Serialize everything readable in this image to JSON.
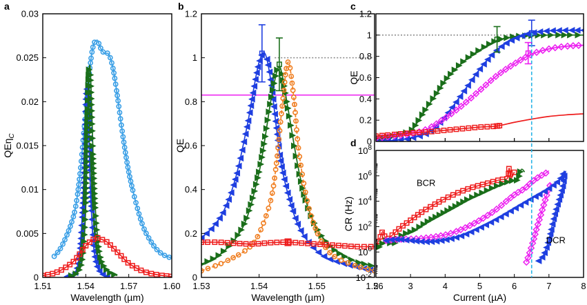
{
  "colors": {
    "blue": "#1f3fe0",
    "green": "#1a6e1a",
    "red": "#ee1c1c",
    "lightblue": "#3a9fe6",
    "orange": "#f07f22",
    "magenta": "#ec1ff0",
    "cyan": "#27b3e6",
    "grey": "#8c8c8c"
  },
  "chart_data": [
    {
      "id": "a",
      "panel_label": "a",
      "type": "line",
      "xlabel": "Wavelength (µm)",
      "ylabel": "QEη",
      "ylabel_sub": "C",
      "xlim": [
        1.51,
        1.6
      ],
      "ylim": [
        0,
        0.03
      ],
      "xticks": [
        "1.51",
        "1.54",
        "1.57",
        "1.60"
      ],
      "xtick_values": [
        1.51,
        1.54,
        1.57,
        1.6
      ],
      "yticks": [
        "0",
        "0.005",
        "0.01",
        "0.015",
        "0.02",
        "0.025",
        "0.03"
      ],
      "ytick_values": [
        0,
        0.005,
        0.01,
        0.015,
        0.02,
        0.025,
        0.03
      ],
      "series": [
        {
          "name": "lightblue (circles)",
          "color_key": "lightblue",
          "marker": "circle",
          "x": [
            1.518,
            1.522,
            1.526,
            1.53,
            1.533,
            1.536,
            1.539,
            1.542,
            1.545,
            1.548,
            1.55,
            1.553,
            1.556,
            1.559,
            1.562,
            1.566,
            1.57,
            1.575,
            1.58,
            1.585,
            1.59,
            1.595,
            1.6
          ],
          "y": [
            0.0024,
            0.0032,
            0.0045,
            0.0062,
            0.0081,
            0.0118,
            0.0172,
            0.0226,
            0.0262,
            0.027,
            0.0262,
            0.0255,
            0.0254,
            0.0238,
            0.0207,
            0.016,
            0.012,
            0.0085,
            0.0058,
            0.0042,
            0.0031,
            0.0025,
            0.0022
          ]
        },
        {
          "name": "blue (left triangles)",
          "color_key": "blue",
          "marker": "tri-left",
          "x": [
            1.527,
            1.532,
            1.535,
            1.537,
            1.539,
            1.54,
            1.541,
            1.542,
            1.543,
            1.545,
            1.547,
            1.55,
            1.555
          ],
          "y": [
            0.0001,
            0.0004,
            0.0019,
            0.0055,
            0.013,
            0.02,
            0.0213,
            0.018,
            0.0112,
            0.0045,
            0.0018,
            0.0006,
            0.0001
          ]
        },
        {
          "name": "green (right triangles)",
          "color_key": "green",
          "marker": "tri-right",
          "x": [
            1.53,
            1.535,
            1.538,
            1.54,
            1.541,
            1.542,
            1.543,
            1.544,
            1.545,
            1.547,
            1.55,
            1.555,
            1.562
          ],
          "y": [
            0.0002,
            0.0007,
            0.0025,
            0.008,
            0.016,
            0.0225,
            0.024,
            0.02,
            0.0145,
            0.007,
            0.0025,
            0.0008,
            0.0002
          ]
        },
        {
          "name": "red (squares)",
          "color_key": "red",
          "marker": "square",
          "x": [
            1.51,
            1.52,
            1.53,
            1.535,
            1.54,
            1.545,
            1.548,
            1.55,
            1.555,
            1.56,
            1.565,
            1.57,
            1.58,
            1.59,
            1.6
          ],
          "y": [
            0.0002,
            0.0006,
            0.0016,
            0.0025,
            0.0036,
            0.0043,
            0.0045,
            0.0044,
            0.004,
            0.0032,
            0.0024,
            0.0016,
            0.0007,
            0.0003,
            0.0001
          ]
        }
      ]
    },
    {
      "id": "b",
      "panel_label": "b",
      "type": "line",
      "xlabel": "Wavelength (µm)",
      "ylabel": "QE",
      "xlim": [
        1.53,
        1.56
      ],
      "ylim": [
        0,
        1.2
      ],
      "xticks": [
        "1.53",
        "1.54",
        "1.55",
        "1.56"
      ],
      "xtick_values": [
        1.53,
        1.54,
        1.55,
        1.56
      ],
      "yticks": [
        "0",
        "0.2",
        "0.4",
        "0.6",
        "0.8",
        "1",
        "1.2"
      ],
      "ytick_values": [
        0,
        0.2,
        0.4,
        0.6,
        0.8,
        1.0,
        1.2
      ],
      "reference_lines": [
        {
          "name": "unity (dotted)",
          "y": 1.0,
          "color_key": "grey",
          "style": "dotted",
          "x_from": 1.5427
        },
        {
          "name": "magenta level",
          "y": 0.83,
          "color_key": "magenta",
          "style": "solid"
        }
      ],
      "series": [
        {
          "name": "blue (left triangles)",
          "color_key": "blue",
          "marker": "tri-left",
          "x": [
            1.53,
            1.532,
            1.534,
            1.536,
            1.538,
            1.539,
            1.54,
            1.541,
            1.542,
            1.543,
            1.544,
            1.546,
            1.548,
            1.551,
            1.555,
            1.56
          ],
          "y": [
            0.18,
            0.23,
            0.31,
            0.46,
            0.7,
            0.85,
            0.98,
            1.02,
            0.9,
            0.68,
            0.49,
            0.29,
            0.18,
            0.1,
            0.06,
            0.03
          ],
          "error_bar": {
            "x": 1.5405,
            "y": 1.02,
            "err": 0.13
          }
        },
        {
          "name": "green (right triangles)",
          "color_key": "green",
          "marker": "tri-right",
          "x": [
            1.53,
            1.533,
            1.536,
            1.538,
            1.54,
            1.541,
            1.542,
            1.543,
            1.5435,
            1.544,
            1.545,
            1.547,
            1.549,
            1.552,
            1.556,
            1.56
          ],
          "y": [
            0.06,
            0.1,
            0.18,
            0.28,
            0.48,
            0.63,
            0.8,
            0.93,
            0.96,
            0.92,
            0.77,
            0.47,
            0.28,
            0.15,
            0.08,
            0.05
          ],
          "error_bar": {
            "x": 1.5435,
            "y": 0.97,
            "err": 0.12
          }
        },
        {
          "name": "orange (circles, dashed)",
          "color_key": "orange",
          "marker": "circle",
          "dashed": true,
          "x": [
            1.53,
            1.534,
            1.538,
            1.54,
            1.542,
            1.543,
            1.544,
            1.545,
            1.546,
            1.547,
            1.549,
            1.552,
            1.556,
            1.56
          ],
          "y": [
            0.03,
            0.07,
            0.13,
            0.2,
            0.35,
            0.52,
            0.78,
            0.98,
            0.82,
            0.55,
            0.28,
            0.12,
            0.06,
            0.03
          ]
        },
        {
          "name": "red (squares)",
          "color_key": "red",
          "marker": "square",
          "x": [
            1.53,
            1.533,
            1.536,
            1.539,
            1.542,
            1.545,
            1.548,
            1.551,
            1.554,
            1.557,
            1.56
          ],
          "y": [
            0.16,
            0.16,
            0.155,
            0.152,
            0.158,
            0.16,
            0.155,
            0.15,
            0.145,
            0.14,
            0.14
          ],
          "error_bar": {
            "x": 1.545,
            "y": 0.16,
            "err": 0.015
          }
        }
      ]
    },
    {
      "id": "c",
      "panel_label": "c",
      "type": "line",
      "xlabel": "",
      "ylabel": "QE",
      "xlim": [
        2,
        8
      ],
      "ylim": [
        0,
        1.2
      ],
      "xticks": [],
      "xtick_values": [
        2,
        3,
        4,
        5,
        6,
        7,
        8
      ],
      "yticks": [
        "0",
        "0.2",
        "0.4",
        "0.6",
        "0.8",
        "1",
        "1.2"
      ],
      "ytick_values": [
        0,
        0.2,
        0.4,
        0.6,
        0.8,
        1.0,
        1.2
      ],
      "reference_lines": [
        {
          "name": "unity (dotted)",
          "y": 1.0,
          "color_key": "grey",
          "style": "dotted",
          "x_to": 6.5
        }
      ],
      "series": [
        {
          "name": "green (right triangles)",
          "color_key": "green",
          "marker": "tri-right",
          "x": [
            2.0,
            2.5,
            3.0,
            3.2,
            3.5,
            3.8,
            4.0,
            4.3,
            4.6,
            5.0,
            5.5,
            6.0,
            6.5,
            7.0,
            8.0
          ],
          "y": [
            0.03,
            0.05,
            0.1,
            0.18,
            0.33,
            0.47,
            0.57,
            0.68,
            0.77,
            0.86,
            0.95,
            0.985,
            0.995,
            1.0,
            1.0
          ],
          "error_bar": {
            "x": 5.5,
            "y": 0.96,
            "err": 0.12
          }
        },
        {
          "name": "blue (left triangles)",
          "color_key": "blue",
          "marker": "tri-left",
          "x": [
            2.0,
            2.5,
            3.0,
            3.5,
            3.8,
            4.2,
            4.6,
            5.0,
            5.4,
            5.8,
            6.2,
            6.5,
            7.0,
            7.5,
            8.0
          ],
          "y": [
            0.0,
            0.01,
            0.03,
            0.08,
            0.16,
            0.32,
            0.5,
            0.68,
            0.83,
            0.93,
            0.99,
            1.02,
            1.04,
            1.045,
            1.045
          ],
          "error_bar": {
            "x": 6.5,
            "y": 1.02,
            "err": 0.12
          }
        },
        {
          "name": "magenta (diamonds)",
          "color_key": "magenta",
          "marker": "diamond",
          "x": [
            2.0,
            2.5,
            3.0,
            3.5,
            4.0,
            4.5,
            5.0,
            5.5,
            6.0,
            6.5,
            7.0,
            7.5,
            8.0
          ],
          "y": [
            0.03,
            0.05,
            0.07,
            0.12,
            0.22,
            0.34,
            0.48,
            0.62,
            0.73,
            0.82,
            0.87,
            0.895,
            0.905
          ],
          "error_bar": {
            "x": 6.4,
            "y": 0.83,
            "err": 0.1
          }
        },
        {
          "name": "red (squares)",
          "color_key": "red",
          "marker": "square",
          "x": [
            2.0,
            2.5,
            3.0,
            3.5,
            4.0,
            4.5,
            5.0,
            5.5,
            6.0,
            6.5,
            7.0,
            7.5,
            8.0
          ],
          "y": [
            0.05,
            0.065,
            0.08,
            0.09,
            0.105,
            0.12,
            0.135,
            0.145,
            0.18,
            0.21,
            0.235,
            0.25,
            0.26
          ],
          "error_bar": {
            "x": 5.5,
            "y": 0.145,
            "err": 0.02
          },
          "markers_until": 5.6
        }
      ]
    },
    {
      "id": "d",
      "panel_label": "d",
      "type": "scatter",
      "log_y": true,
      "xlabel": "Current (µA)",
      "ylabel": "CR (Hz)",
      "xlim": [
        2,
        8
      ],
      "ylim_exp": [
        -2,
        8
      ],
      "xticks": [
        "2",
        "3",
        "4",
        "5",
        "6",
        "7",
        "8"
      ],
      "xtick_values": [
        2,
        3,
        4,
        5,
        6,
        7,
        8
      ],
      "yticks": [
        "10-2",
        "100",
        "102",
        "104",
        "106",
        "108"
      ],
      "ytick_exp": [
        -2,
        0,
        2,
        4,
        6,
        8
      ],
      "annotations": [
        {
          "text": "BCR",
          "x": 3.45,
          "exp": 5.2
        },
        {
          "text": "DCR",
          "x": 7.2,
          "exp": 0.7
        }
      ],
      "series": [
        {
          "name": "red BCR (squares)",
          "color_key": "red",
          "marker": "square",
          "x": [
            2.0,
            2.1,
            2.2,
            2.3,
            2.5,
            2.7,
            3.0,
            3.3,
            3.6,
            4.0,
            4.4,
            4.8,
            5.2,
            5.6,
            5.8,
            5.85,
            5.9,
            6.0
          ],
          "exp": [
            0.5,
            1.0,
            1.6,
            1.0,
            1.4,
            1.9,
            2.5,
            3.1,
            3.6,
            4.2,
            4.7,
            5.1,
            5.4,
            5.7,
            5.8,
            6.6,
            5.8,
            6.3
          ]
        },
        {
          "name": "green BCR (right triangles)",
          "color_key": "green",
          "marker": "tri-right",
          "x": [
            2.1,
            2.3,
            2.5,
            2.7,
            2.9,
            3.1,
            3.5,
            3.9,
            4.3,
            4.7,
            5.1,
            5.5,
            5.9,
            6.1,
            6.2,
            6.3
          ],
          "exp": [
            0.4,
            0.9,
            0.6,
            1.2,
            1.5,
            1.7,
            2.4,
            3.0,
            3.6,
            4.2,
            4.7,
            5.2,
            5.6,
            5.7,
            6.5,
            6.3
          ]
        },
        {
          "name": "magenta BCR (diamonds)",
          "color_key": "magenta",
          "marker": "diamond",
          "x": [
            2.3,
            2.7,
            3.2,
            3.7,
            4.2,
            4.8,
            5.4,
            6.0,
            6.3,
            6.5,
            6.7,
            6.9,
            7.0
          ],
          "exp": [
            0.9,
            1.0,
            1.05,
            1.2,
            1.5,
            2.2,
            3.2,
            4.5,
            5.0,
            5.5,
            5.9,
            6.2,
            6.4
          ]
        },
        {
          "name": "magenta DCR (diamonds)",
          "color_key": "magenta",
          "marker": "diamond",
          "x": [
            6.35,
            6.45,
            6.55,
            6.65,
            6.75,
            6.85,
            6.95,
            7.05
          ],
          "exp": [
            -0.8,
            0.0,
            0.9,
            1.9,
            2.8,
            3.7,
            4.6,
            5.4
          ]
        },
        {
          "name": "blue BCR (left triangles)",
          "color_key": "blue",
          "marker": "tri-left",
          "x": [
            2.3,
            2.6,
            3.0,
            3.5,
            4.0,
            4.5,
            5.0,
            5.5,
            6.0,
            6.5,
            7.0,
            7.3,
            7.45
          ],
          "exp": [
            0.9,
            1.0,
            0.9,
            0.8,
            0.95,
            1.3,
            1.9,
            2.6,
            3.4,
            4.2,
            5.0,
            5.7,
            6.4
          ]
        },
        {
          "name": "blue DCR (left triangles)",
          "color_key": "blue",
          "marker": "tri-left",
          "x": [
            6.7,
            6.85,
            7.0,
            7.1,
            7.2,
            7.3,
            7.4,
            7.45
          ],
          "exp": [
            -0.7,
            -0.2,
            1.0,
            2.2,
            3.3,
            4.2,
            5.2,
            6.2
          ]
        }
      ],
      "vline": {
        "x": 6.5,
        "color_key": "cyan",
        "style": "dashed",
        "spans_panels": [
          "c",
          "d"
        ]
      }
    }
  ]
}
